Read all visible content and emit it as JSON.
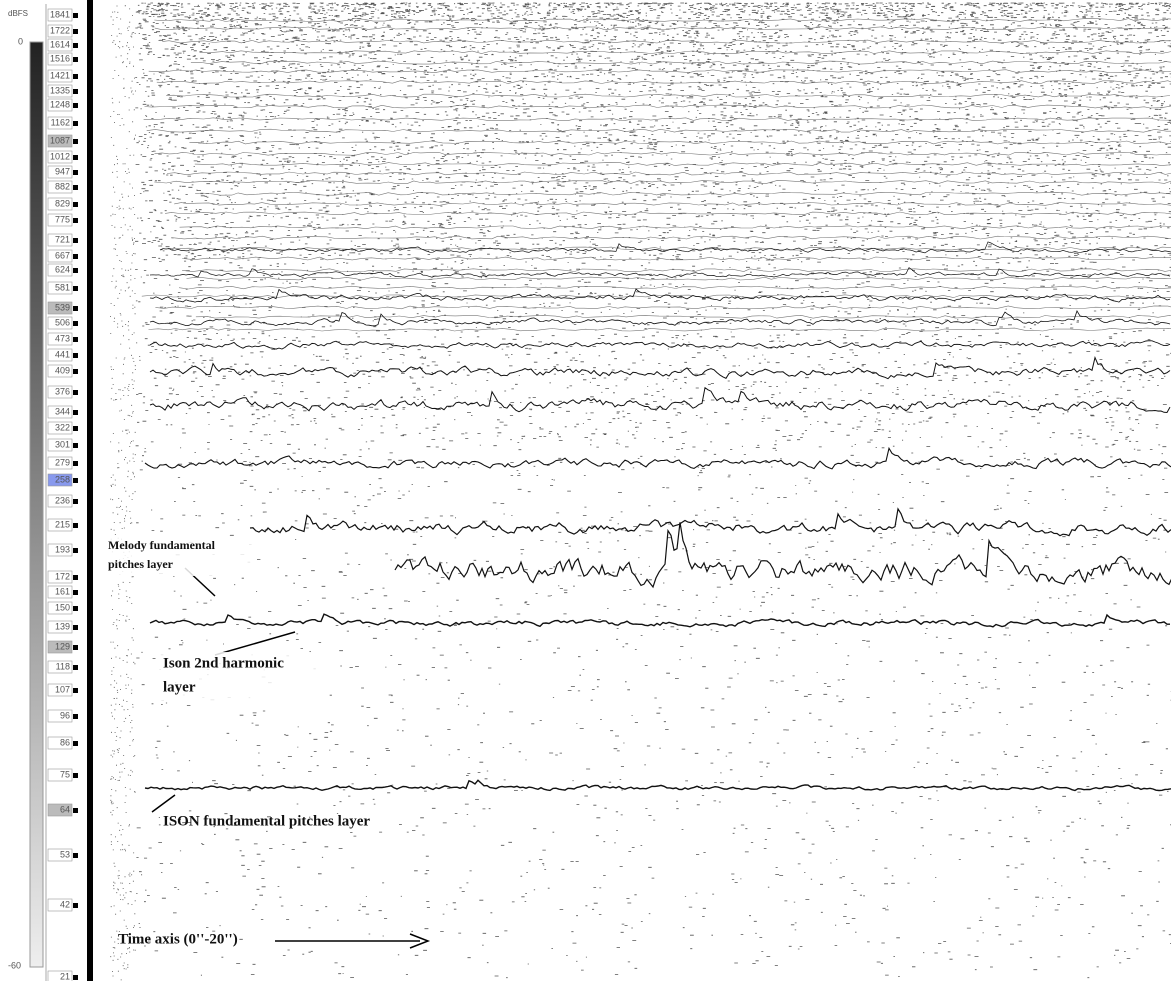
{
  "scale": {
    "unit": "dBFS",
    "top": "0",
    "bottom": "-60"
  },
  "frequency_labels": [
    1841,
    1722,
    1614,
    1516,
    1421,
    1335,
    1248,
    1162,
    1087,
    1012,
    947,
    882,
    829,
    775,
    721,
    667,
    624,
    581,
    539,
    506,
    473,
    441,
    409,
    376,
    344,
    322,
    301,
    279,
    258,
    236,
    215,
    193,
    172,
    161,
    150,
    139,
    129,
    118,
    107,
    96,
    86,
    75,
    64,
    53,
    42,
    21
  ],
  "annotations": {
    "melody": [
      "Melody fundamental",
      "pitches layer"
    ],
    "ison_harmonic": [
      "Ison 2nd harmonic",
      "layer"
    ],
    "ison_fundamental": "ISON fundamental pitches layer",
    "time_axis": "Time axis (0''-20'')"
  }
}
